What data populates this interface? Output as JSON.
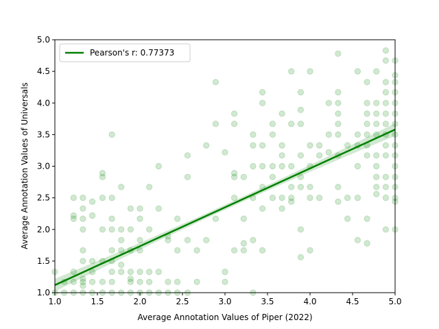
{
  "chart_data": {
    "type": "scatter",
    "title": "",
    "xlabel": "Average Annotation Values of Piper (2022)",
    "ylabel": "Average Annotation Values of Universals",
    "xlim": [
      1.0,
      5.0
    ],
    "ylim": [
      1.0,
      5.0
    ],
    "xticks": [
      "1.0",
      "1.5",
      "2.0",
      "2.5",
      "3.0",
      "3.5",
      "4.0",
      "4.5",
      "5.0"
    ],
    "yticks": [
      "1.0",
      "1.5",
      "2.0",
      "2.5",
      "3.0",
      "3.5",
      "4.0",
      "4.5",
      "5.0"
    ],
    "grid": false,
    "legend": {
      "position": "top-left",
      "entries": [
        "Pearson's r: 0.77373"
      ]
    },
    "colors": {
      "points": "#008000",
      "line": "#008000",
      "band": "#008000"
    },
    "series": [
      {
        "values": [
          [
            1.0,
            1.0
          ],
          [
            1.0,
            1.33
          ],
          [
            1.11,
            1.17
          ],
          [
            1.11,
            1.0
          ],
          [
            1.22,
            1.33
          ],
          [
            1.22,
            2.17
          ],
          [
            1.22,
            2.5
          ],
          [
            1.22,
            2.22
          ],
          [
            1.22,
            1.17
          ],
          [
            1.22,
            1.0
          ],
          [
            1.33,
            1.0
          ],
          [
            1.33,
            1.17
          ],
          [
            1.33,
            1.22
          ],
          [
            1.33,
            1.67
          ],
          [
            1.33,
            1.5
          ],
          [
            1.33,
            2.0
          ],
          [
            1.33,
            2.5
          ],
          [
            1.33,
            2.33
          ],
          [
            1.33,
            2.17
          ],
          [
            1.33,
            1.11
          ],
          [
            1.44,
            1.0
          ],
          [
            1.44,
            1.33
          ],
          [
            1.44,
            1.5
          ],
          [
            1.44,
            2.44
          ],
          [
            1.44,
            2.22
          ],
          [
            1.44,
            1.17
          ],
          [
            1.56,
            1.0
          ],
          [
            1.56,
            1.5
          ],
          [
            1.56,
            2.0
          ],
          [
            1.56,
            2.5
          ],
          [
            1.56,
            2.83
          ],
          [
            1.56,
            2.89
          ],
          [
            1.56,
            1.17
          ],
          [
            1.67,
            1.0
          ],
          [
            1.67,
            1.33
          ],
          [
            1.67,
            1.5
          ],
          [
            1.67,
            1.67
          ],
          [
            1.67,
            2.0
          ],
          [
            1.67,
            2.17
          ],
          [
            1.67,
            2.5
          ],
          [
            1.67,
            3.5
          ],
          [
            1.67,
            1.17
          ],
          [
            1.78,
            1.0
          ],
          [
            1.78,
            1.33
          ],
          [
            1.78,
            1.44
          ],
          [
            1.78,
            1.83
          ],
          [
            1.78,
            2.0
          ],
          [
            1.78,
            2.67
          ],
          [
            1.78,
            1.67
          ],
          [
            1.89,
            1.0
          ],
          [
            1.89,
            1.22
          ],
          [
            1.89,
            1.33
          ],
          [
            1.89,
            1.67
          ],
          [
            1.89,
            2.0
          ],
          [
            1.89,
            2.33
          ],
          [
            1.89,
            1.17
          ],
          [
            2.0,
            1.0
          ],
          [
            2.0,
            1.17
          ],
          [
            2.0,
            1.33
          ],
          [
            2.0,
            1.67
          ],
          [
            2.0,
            1.83
          ],
          [
            2.0,
            2.17
          ],
          [
            2.0,
            2.33
          ],
          [
            2.11,
            1.0
          ],
          [
            2.11,
            1.17
          ],
          [
            2.11,
            1.33
          ],
          [
            2.11,
            2.0
          ],
          [
            2.11,
            2.67
          ],
          [
            2.22,
            1.0
          ],
          [
            2.22,
            1.33
          ],
          [
            2.22,
            2.33
          ],
          [
            2.22,
            3.0
          ],
          [
            2.33,
            1.0
          ],
          [
            2.33,
            1.17
          ],
          [
            2.33,
            1.83
          ],
          [
            2.33,
            1.89
          ],
          [
            2.44,
            1.0
          ],
          [
            2.44,
            1.17
          ],
          [
            2.44,
            1.67
          ],
          [
            2.44,
            2.17
          ],
          [
            2.56,
            1.0
          ],
          [
            2.56,
            1.83
          ],
          [
            2.56,
            2.83
          ],
          [
            2.56,
            3.17
          ],
          [
            2.67,
            1.67
          ],
          [
            2.67,
            1.17
          ],
          [
            2.78,
            1.83
          ],
          [
            2.78,
            3.33
          ],
          [
            2.89,
            2.17
          ],
          [
            2.89,
            3.67
          ],
          [
            2.89,
            4.33
          ],
          [
            3.0,
            1.17
          ],
          [
            3.0,
            1.33
          ],
          [
            3.0,
            3.22
          ],
          [
            3.11,
            1.67
          ],
          [
            3.11,
            2.5
          ],
          [
            3.11,
            2.83
          ],
          [
            3.11,
            2.89
          ],
          [
            3.11,
            3.67
          ],
          [
            3.11,
            3.83
          ],
          [
            3.22,
            1.67
          ],
          [
            3.22,
            1.78
          ],
          [
            3.22,
            2.17
          ],
          [
            3.22,
            2.83
          ],
          [
            3.33,
            1.83
          ],
          [
            3.33,
            2.5
          ],
          [
            3.33,
            3.0
          ],
          [
            3.33,
            3.33
          ],
          [
            3.33,
            3.5
          ],
          [
            3.33,
            1.0
          ],
          [
            3.44,
            1.67
          ],
          [
            3.44,
            2.33
          ],
          [
            3.44,
            2.67
          ],
          [
            3.44,
            3.0
          ],
          [
            3.44,
            3.33
          ],
          [
            3.44,
            4.0
          ],
          [
            3.44,
            4.17
          ],
          [
            3.56,
            2.5
          ],
          [
            3.56,
            2.83
          ],
          [
            3.56,
            3.0
          ],
          [
            3.56,
            3.5
          ],
          [
            3.56,
            3.67
          ],
          [
            3.67,
            2.33
          ],
          [
            3.67,
            2.5
          ],
          [
            3.67,
            3.0
          ],
          [
            3.67,
            3.17
          ],
          [
            3.67,
            3.33
          ],
          [
            3.67,
            3.83
          ],
          [
            3.78,
            2.5
          ],
          [
            3.78,
            2.44
          ],
          [
            3.78,
            2.67
          ],
          [
            3.78,
            3.0
          ],
          [
            3.78,
            3.67
          ],
          [
            3.78,
            4.5
          ],
          [
            3.89,
            1.56
          ],
          [
            3.89,
            2.0
          ],
          [
            3.89,
            2.67
          ],
          [
            3.89,
            2.83
          ],
          [
            3.89,
            3.17
          ],
          [
            3.89,
            3.67
          ],
          [
            3.89,
            3.89
          ],
          [
            3.89,
            4.17
          ],
          [
            4.0,
            1.67
          ],
          [
            4.0,
            2.5
          ],
          [
            4.0,
            2.67
          ],
          [
            4.0,
            3.0
          ],
          [
            4.0,
            3.33
          ],
          [
            4.0,
            4.5
          ],
          [
            4.11,
            2.5
          ],
          [
            4.11,
            3.33
          ],
          [
            4.11,
            3.17
          ],
          [
            4.22,
            3.22
          ],
          [
            4.22,
            3.5
          ],
          [
            4.22,
            4.0
          ],
          [
            4.33,
            2.44
          ],
          [
            4.33,
            2.67
          ],
          [
            4.33,
            3.17
          ],
          [
            4.33,
            3.5
          ],
          [
            4.33,
            3.67
          ],
          [
            4.33,
            3.83
          ],
          [
            4.33,
            4.0
          ],
          [
            4.33,
            4.17
          ],
          [
            4.33,
            4.78
          ],
          [
            4.44,
            2.17
          ],
          [
            4.44,
            2.5
          ],
          [
            4.44,
            3.33
          ],
          [
            4.56,
            1.83
          ],
          [
            4.56,
            2.5
          ],
          [
            4.56,
            3.0
          ],
          [
            4.56,
            3.33
          ],
          [
            4.56,
            3.5
          ],
          [
            4.56,
            4.5
          ],
          [
            4.67,
            1.78
          ],
          [
            4.67,
            2.17
          ],
          [
            4.67,
            3.17
          ],
          [
            4.67,
            3.33
          ],
          [
            4.67,
            3.5
          ],
          [
            4.67,
            3.67
          ],
          [
            4.67,
            3.83
          ],
          [
            4.67,
            4.0
          ],
          [
            4.67,
            4.33
          ],
          [
            4.78,
            2.56
          ],
          [
            4.78,
            2.67
          ],
          [
            4.78,
            2.83
          ],
          [
            4.78,
            3.0
          ],
          [
            4.78,
            3.17
          ],
          [
            4.78,
            3.5
          ],
          [
            4.78,
            3.67
          ],
          [
            4.78,
            3.83
          ],
          [
            4.78,
            4.0
          ],
          [
            4.78,
            4.5
          ],
          [
            4.89,
            2.0
          ],
          [
            4.89,
            2.5
          ],
          [
            4.89,
            2.67
          ],
          [
            4.89,
            2.83
          ],
          [
            4.89,
            3.17
          ],
          [
            4.89,
            3.33
          ],
          [
            4.89,
            3.5
          ],
          [
            4.89,
            3.67
          ],
          [
            4.89,
            3.83
          ],
          [
            4.89,
            4.0
          ],
          [
            4.89,
            4.17
          ],
          [
            4.89,
            4.33
          ],
          [
            4.89,
            4.67
          ],
          [
            4.89,
            4.83
          ],
          [
            5.0,
            2.0
          ],
          [
            5.0,
            2.44
          ],
          [
            5.0,
            2.5
          ],
          [
            5.0,
            2.67
          ],
          [
            5.0,
            2.83
          ],
          [
            5.0,
            3.0
          ],
          [
            5.0,
            3.17
          ],
          [
            5.0,
            3.33
          ],
          [
            5.0,
            3.5
          ],
          [
            5.0,
            3.67
          ],
          [
            5.0,
            3.83
          ],
          [
            5.0,
            4.0
          ],
          [
            5.0,
            4.17
          ],
          [
            5.0,
            4.33
          ],
          [
            5.0,
            4.44
          ],
          [
            5.0,
            4.67
          ]
        ]
      }
    ],
    "regression": {
      "label": "Pearson's r: 0.77373",
      "x": [
        1.0,
        5.0
      ],
      "y": [
        1.12,
        3.58
      ],
      "ci_half_width_at_ends": 0.1,
      "ci_half_width_at_center": 0.04
    }
  }
}
